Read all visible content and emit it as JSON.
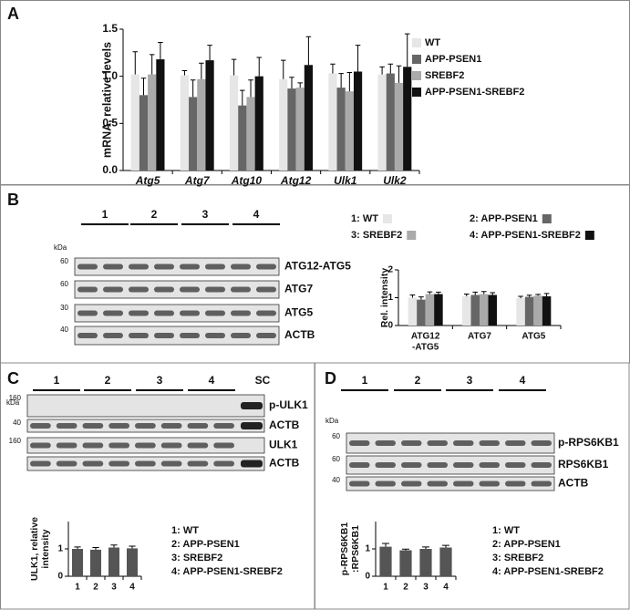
{
  "panel_labels": [
    "A",
    "B",
    "C",
    "D"
  ],
  "chart_data": [
    {
      "type": "bar",
      "ylabel": "mRNA, relative levels",
      "categories": [
        "Atg5",
        "Atg7",
        "Atg10",
        "Atg12",
        "Ulk1",
        "Ulk2"
      ],
      "ylim": [
        0,
        1.5
      ],
      "yticks": [
        {
          "value": 0,
          "label": "0.0"
        },
        {
          "value": 0.5,
          "label": "0.5"
        },
        {
          "value": 1,
          "label": "1.0"
        },
        {
          "value": 1.5,
          "label": "1.5"
        }
      ],
      "series": [
        {
          "name": "WT",
          "color": "#e6e6e6",
          "values": [
            1.02,
            1.01,
            1.01,
            0.97,
            1.03,
            1.02
          ],
          "errors": [
            0.24,
            0.05,
            0.17,
            0.2,
            0.1,
            0.08
          ]
        },
        {
          "name": "APP-PSEN1",
          "color": "#666666",
          "values": [
            0.8,
            0.78,
            0.69,
            0.87,
            0.88,
            1.03
          ],
          "errors": [
            0.18,
            0.18,
            0.16,
            0.12,
            0.15,
            0.1
          ]
        },
        {
          "name": "SREBF2",
          "color": "#aaaaaa",
          "values": [
            1.02,
            0.97,
            0.78,
            0.88,
            0.84,
            0.93
          ],
          "errors": [
            0.21,
            0.17,
            0.18,
            0.05,
            0.2,
            0.18
          ]
        },
        {
          "name": "APP-PSEN1-SREBF2",
          "color": "#111111",
          "values": [
            1.18,
            1.17,
            1.0,
            1.12,
            1.05,
            1.1
          ],
          "errors": [
            0.18,
            0.16,
            0.2,
            0.3,
            0.28,
            0.35
          ]
        }
      ]
    },
    {
      "type": "bar",
      "ylabel": "Rel. intensity",
      "categories": [
        [
          "ATG12",
          "-ATG5"
        ],
        "ATG7",
        "ATG5"
      ],
      "ylim": [
        0,
        2
      ],
      "yticks": [
        0,
        1,
        2
      ],
      "series": [
        {
          "name": "1: WT",
          "color": "#e6e6e6",
          "values": [
            1.0,
            1.05,
            0.98
          ],
          "errors": [
            0.1,
            0.08,
            0.07
          ]
        },
        {
          "name": "2: APP-PSEN1",
          "color": "#666666",
          "values": [
            0.93,
            1.1,
            1.03
          ],
          "errors": [
            0.1,
            0.1,
            0.06
          ]
        },
        {
          "name": "3: SREBF2",
          "color": "#aaaaaa",
          "values": [
            1.13,
            1.13,
            1.07
          ],
          "errors": [
            0.08,
            0.09,
            0.05
          ]
        },
        {
          "name": "4: APP-PSEN1-SREBF2",
          "color": "#111111",
          "values": [
            1.13,
            1.1,
            1.05
          ],
          "errors": [
            0.07,
            0.08,
            0.1
          ]
        }
      ]
    },
    {
      "type": "bar",
      "ylabel": [
        "ULK1, relative",
        "intensity"
      ],
      "categories": [
        "1",
        "2",
        "3",
        "4"
      ],
      "ylim": [
        0,
        2
      ],
      "yticks": [
        0,
        1
      ],
      "series": [
        {
          "color": "#555555",
          "values": [
            1.0,
            0.97,
            1.05,
            1.02
          ],
          "errors": [
            0.07,
            0.08,
            0.09,
            0.08
          ]
        }
      ],
      "legend_text": [
        "1: WT",
        "2: APP-PSEN1",
        "3: SREBF2",
        "4: APP-PSEN1-SREBF2"
      ]
    },
    {
      "type": "bar",
      "ylabel": [
        "p-RPS6KB1",
        ":RPS6KB1"
      ],
      "categories": [
        "1",
        "2",
        "3",
        "4"
      ],
      "ylim": [
        0,
        2
      ],
      "yticks": [
        0,
        1
      ],
      "series": [
        {
          "color": "#555555",
          "values": [
            1.08,
            0.95,
            1.0,
            1.05
          ],
          "errors": [
            0.12,
            0.04,
            0.07,
            0.08
          ]
        }
      ],
      "legend_text": [
        "1: WT",
        "2: APP-PSEN1",
        "3: SREBF2",
        "4: APP-PSEN1-SREBF2"
      ]
    }
  ],
  "blots": [
    {
      "kda_label": "kDa",
      "lanes": [
        "1",
        "2",
        "3",
        "4"
      ],
      "rows": [
        {
          "kda": "60",
          "label": "ATG12-ATG5"
        },
        {
          "kda": "60",
          "label": "ATG7"
        },
        {
          "kda": "30",
          "label": "ATG5"
        },
        {
          "kda": "40",
          "label": "ACTB"
        }
      ]
    },
    {
      "kda_label": "kDa",
      "lanes": [
        "1",
        "2",
        "3",
        "4",
        "SC"
      ],
      "rows": [
        {
          "kda": "160",
          "label": "p-ULK1"
        },
        {
          "kda": "40",
          "label": "ACTB"
        },
        {
          "kda": "160",
          "label": "ULK1"
        },
        {
          "label": "ACTB"
        }
      ]
    },
    {
      "kda_label": "kDa",
      "lanes": [
        "1",
        "2",
        "3",
        "4"
      ],
      "rows": [
        {
          "kda": "60",
          "label": "p-RPS6KB1"
        },
        {
          "kda": "60",
          "label": "RPS6KB1"
        },
        {
          "kda": "40",
          "label": "ACTB"
        }
      ]
    }
  ]
}
